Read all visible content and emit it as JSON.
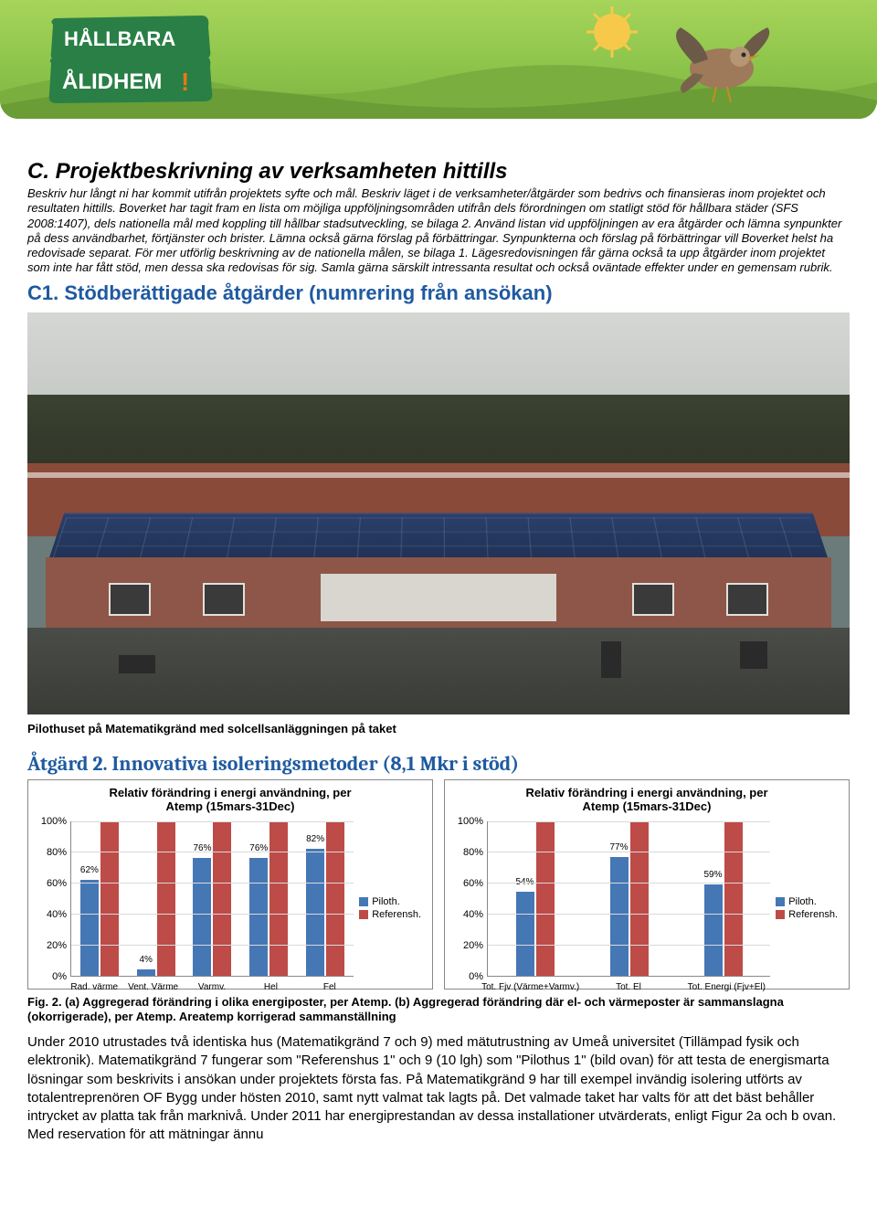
{
  "banner": {
    "logo_line1": "HÅLLBARA",
    "logo_line2": "ÅLIDHEM",
    "logo_bg": "#2a7f46",
    "logo_text_color": "#ffffff",
    "banner_gradient_top": "#a7d45a",
    "banner_gradient_bottom": "#7cb342",
    "sun_color": "#f6c94a",
    "bird_body": "#9e7a5a",
    "bird_wing": "#6b5a48"
  },
  "section_c": {
    "heading": "C. Projektbeskrivning av verksamheten hittills",
    "intro": "Beskriv hur långt ni har kommit utifrån projektets syfte och mål. Beskriv läget i de verksamheter/åtgärder som bedrivs och finansieras inom projektet och resultaten hittills. Boverket har tagit fram en lista om möjliga uppföljningsområden utifrån dels förordningen om statligt stöd för hållbara städer (SFS 2008:1407), dels nationella mål med koppling till hållbar stadsutveckling, se bilaga 2. Använd listan vid uppföljningen av era åtgärder och lämna synpunkter på dess användbarhet, förtjänster och brister. Lämna också gärna förslag på förbättringar. Synpunkterna och förslag på förbättringar vill Boverket helst ha redovisade separat. För mer utförlig beskrivning av de nationella målen, se bilaga 1. Lägesredovisningen får gärna också ta upp åtgärder inom projektet som inte har fått stöd, men dessa ska redovisas för sig. Samla gärna särskilt intressanta resultat och också oväntade effekter under en gemensam rubrik."
  },
  "section_c1": {
    "heading": "C1. Stödberättigade åtgärder (numrering från ansökan)"
  },
  "photo": {
    "caption": "Pilothuset på Matematikgränd med solcellsanläggningen på taket"
  },
  "atgard2": {
    "heading": "Åtgärd 2. Innovativa isoleringsmetoder (8,1 Mkr i stöd)"
  },
  "chart_common": {
    "title_line1": "Relativ förändring i energi användning, per",
    "title_line2": "Atemp (15mars-31Dec)",
    "y_ticks": [
      "100%",
      "80%",
      "60%",
      "40%",
      "20%",
      "0%"
    ],
    "legend_labels": [
      "Piloth.",
      "Referensh."
    ],
    "series_colors": {
      "piloth": "#4577b5",
      "referensh": "#bd4b48"
    },
    "grid_color": "#d9d9d9",
    "border_color": "#888888",
    "font_size_title": 13,
    "font_size_axis": 11,
    "ylim": [
      0,
      100
    ]
  },
  "chart_a": {
    "categories": [
      "Rad. värme",
      "Vent. Värme",
      "Varmv.",
      "Hel",
      "Fel"
    ],
    "piloth": [
      62,
      4,
      76,
      76,
      82
    ],
    "referensh": [
      100,
      100,
      100,
      100,
      100
    ],
    "bar_labels": [
      "62%",
      "4%",
      "76%",
      "76%",
      "82%"
    ]
  },
  "chart_b": {
    "categories": [
      "Tot. Fjv (Värme+Varmv.)",
      "Tot. El",
      "Tot. Energi (Fjv+El)"
    ],
    "piloth": [
      54,
      77,
      59
    ],
    "referensh": [
      100,
      100,
      100
    ],
    "bar_labels": [
      "54%",
      "77%",
      "59%"
    ]
  },
  "fig2": {
    "caption": "Fig. 2. (a) Aggregerad förändring i olika energiposter, per Atemp. (b) Aggregerad förändring där el- och värmeposter är sammanslagna (okorrigerade), per Atemp. Areatemp korrigerad sammanställning"
  },
  "body": {
    "text": "Under 2010 utrustades två identiska hus (Matematikgränd 7 och 9) med mätutrustning av Umeå universitet (Tillämpad fysik och elektronik). Matematikgränd 7 fungerar som \"Referenshus 1\" och 9 (10 lgh) som \"Pilothus 1\" (bild ovan) för att testa de energismarta lösningar som beskrivits i ansökan under projektets första fas. På Matematikgränd 9 har till exempel invändig isolering utförts av totalentreprenören OF Bygg under hösten 2010, samt nytt valmat tak lagts på. Det valmade taket har valts för att det bäst behåller intrycket av platta tak från marknivå. Under 2011 har energiprestandan av dessa installationer utvärderats, enligt Figur 2a och b ovan. Med reservation för att mätningar ännu"
  }
}
